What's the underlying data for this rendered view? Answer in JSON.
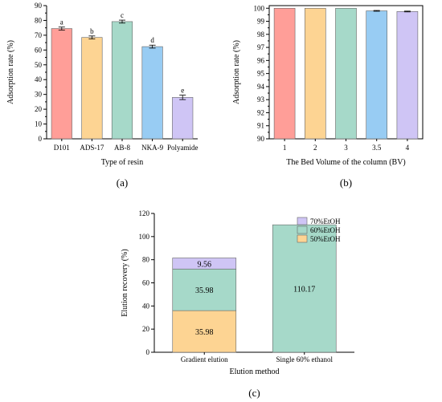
{
  "chart_data": [
    {
      "type": "bar",
      "panel_label": "(a)",
      "categories": [
        "D101",
        "ADS-17",
        "AB-8",
        "NKA-9",
        "Polyamide"
      ],
      "values": [
        74.5,
        68.5,
        79.2,
        62.3,
        28.0
      ],
      "errors": [
        1.0,
        1.0,
        1.0,
        1.0,
        1.5
      ],
      "significance_letters": [
        "a",
        "b",
        "c",
        "d",
        "e"
      ],
      "colors": [
        "#FF9E98",
        "#FDD493",
        "#A6D9C9",
        "#98CCF3",
        "#CFC5F5"
      ],
      "xlabel": "Type of resin",
      "ylabel": "Adsorption rate (%)",
      "ylim": [
        0,
        90
      ],
      "yticks": [
        "0",
        "10",
        "20",
        "30",
        "40",
        "50",
        "60",
        "70",
        "80",
        "90"
      ],
      "grid": false
    },
    {
      "type": "bar",
      "panel_label": "(b)",
      "categories": [
        "1",
        "2",
        "3",
        "3.5",
        "4"
      ],
      "values": [
        100.0,
        100.0,
        100.0,
        99.8,
        99.75
      ],
      "errors": [
        0,
        0,
        0,
        0.03,
        0.03
      ],
      "colors": [
        "#FF9E98",
        "#FDD493",
        "#A6D9C9",
        "#98CCF3",
        "#CFC5F5"
      ],
      "xlabel": "The Bed Volume of the column (BV)",
      "ylabel": "Adsorption rate (%)",
      "ylim": [
        90,
        100.2
      ],
      "yticks": [
        "90",
        "91",
        "92",
        "93",
        "94",
        "95",
        "96",
        "97",
        "98",
        "99",
        "100"
      ],
      "grid": false
    },
    {
      "type": "bar",
      "stacked": true,
      "panel_label": "(c)",
      "categories": [
        "Gradient elution",
        "Single 60% ethanol"
      ],
      "series": [
        {
          "name": "50%EtOH",
          "values": [
            35.98,
            0
          ],
          "labels": [
            "35.98",
            ""
          ],
          "color": "#FDD493"
        },
        {
          "name": "60%EtOH",
          "values": [
            35.98,
            110.17
          ],
          "labels": [
            "35.98",
            "110.17"
          ],
          "color": "#A6D9C9"
        },
        {
          "name": "70%EtOH",
          "values": [
            9.56,
            0
          ],
          "labels": [
            "9.56",
            ""
          ],
          "color": "#CFC5F5"
        }
      ],
      "xlabel": "Elution method",
      "ylabel": "Elution recovery (%)",
      "ylim": [
        0,
        120
      ],
      "yticks": [
        "0",
        "20",
        "40",
        "60",
        "80",
        "100",
        "120"
      ],
      "legend_position": "top-right",
      "grid": false
    }
  ]
}
